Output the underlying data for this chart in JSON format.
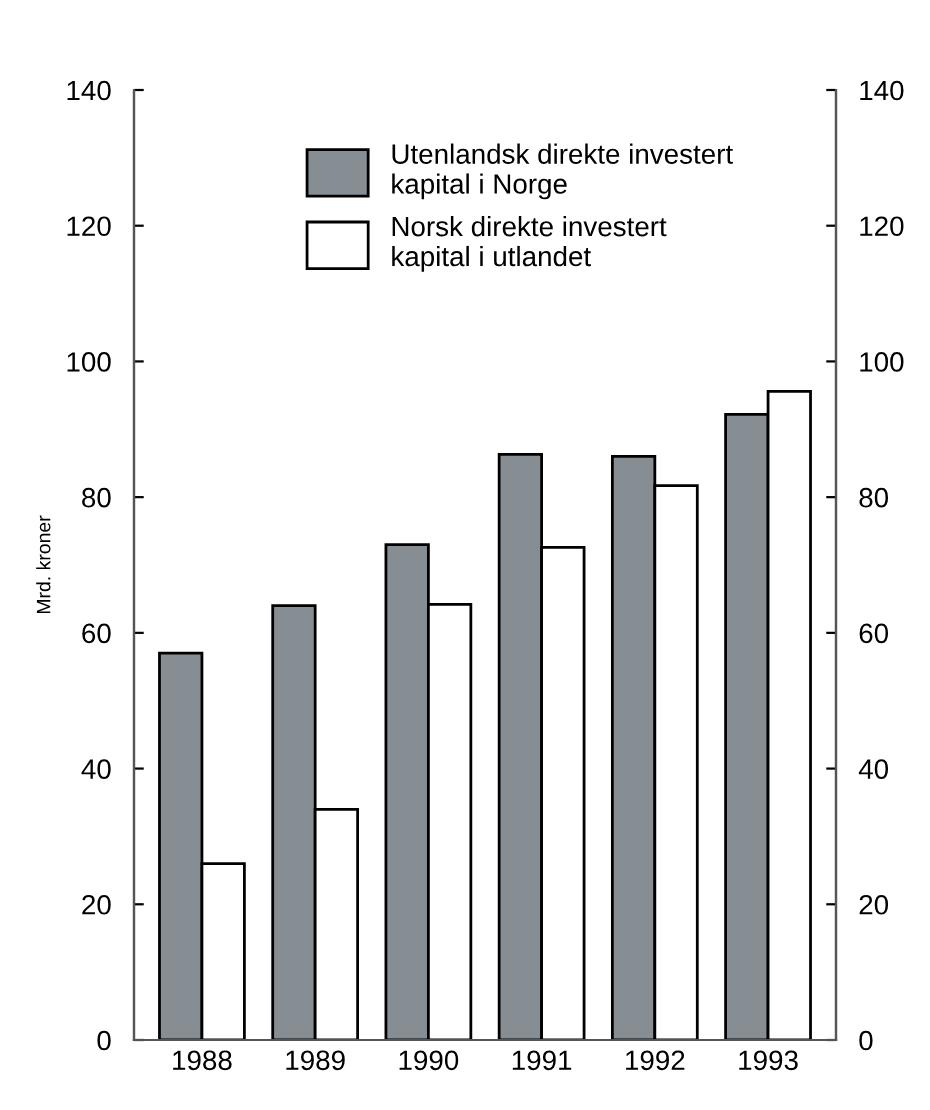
{
  "chart_data": {
    "type": "bar",
    "ylabel": "Mrd. kroner",
    "categories": [
      "1988",
      "1989",
      "1990",
      "1991",
      "1992",
      "1993"
    ],
    "series": [
      {
        "name": "Utenlandsk direkte investert\nkapital i Norge",
        "color": "#868e93",
        "values": [
          57,
          64,
          73,
          86.3,
          86,
          92.2
        ]
      },
      {
        "name": "Norsk direkte investert\nkapital i utlandet",
        "color": "#ffffff",
        "values": [
          26,
          34,
          64.2,
          72.6,
          81.7,
          95.6
        ]
      }
    ],
    "ylim": [
      0,
      140
    ],
    "yticks": [
      0,
      20,
      40,
      60,
      80,
      100,
      120,
      140
    ],
    "y2lim": [
      0,
      140
    ],
    "y2ticks": [
      0,
      20,
      40,
      60,
      80,
      100,
      120,
      140
    ],
    "grid": false,
    "legend": "top"
  }
}
